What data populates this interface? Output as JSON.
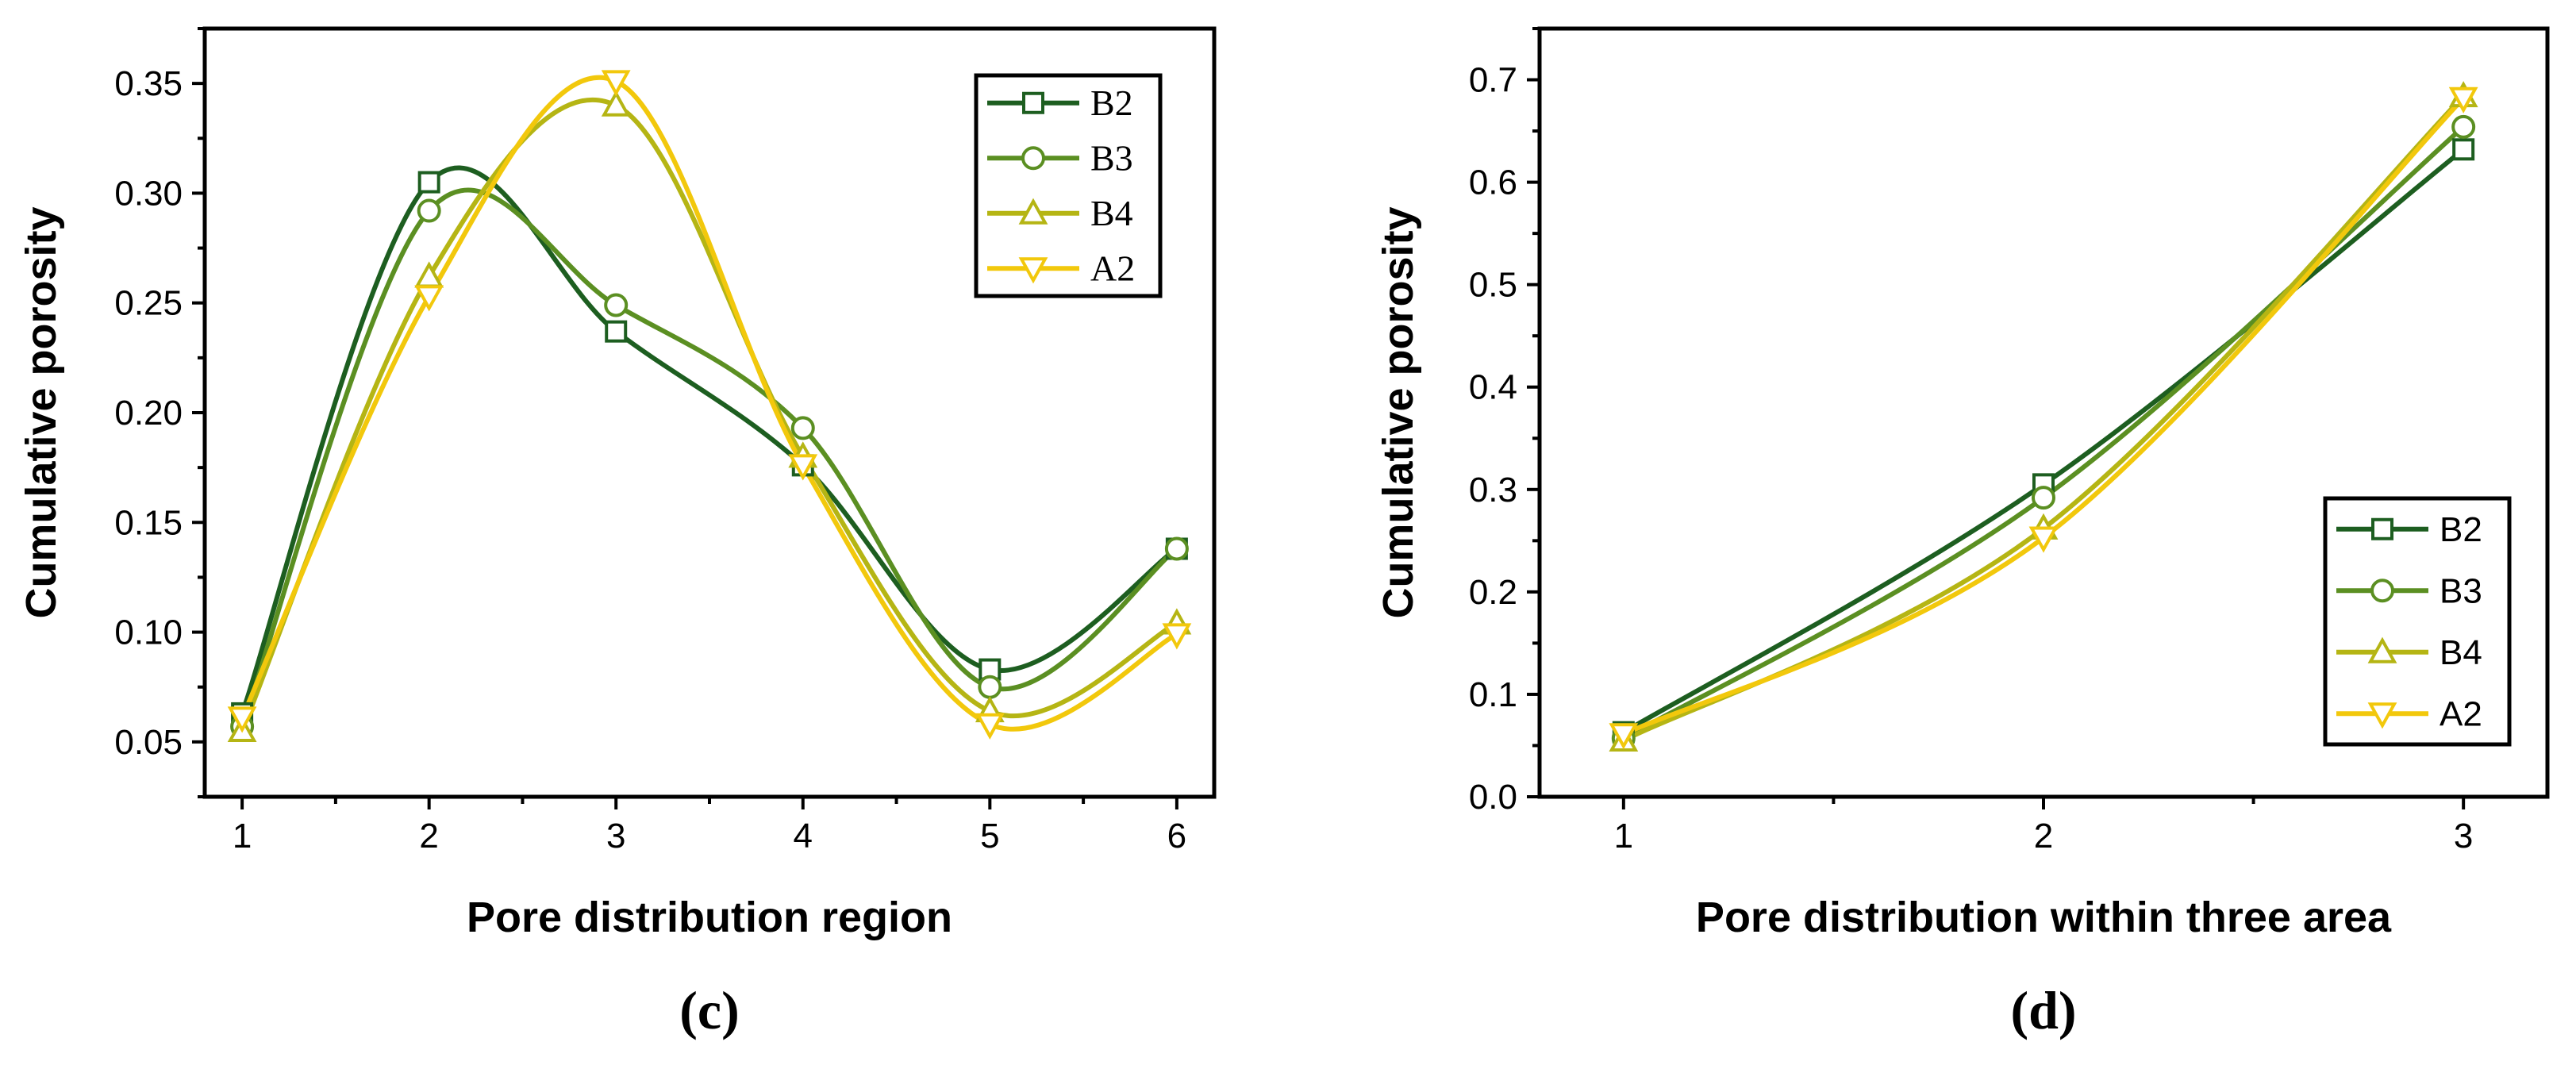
{
  "chart_data": [
    {
      "type": "line",
      "panel_label": "(c)",
      "xlabel": "Pore distribution region",
      "ylabel": "Cumulative porosity",
      "xlim": [
        0.8,
        6.2
      ],
      "ylim": [
        0.025,
        0.375
      ],
      "x_ticks": [
        1,
        2,
        3,
        4,
        5,
        6
      ],
      "x_tick_labels": [
        "1",
        "2",
        "3",
        "4",
        "5",
        "6"
      ],
      "y_ticks": [
        0.05,
        0.1,
        0.15,
        0.2,
        0.25,
        0.3,
        0.35
      ],
      "y_tick_labels": [
        "0.05",
        "0.10",
        "0.15",
        "0.20",
        "0.25",
        "0.30",
        "0.35"
      ],
      "smooth": true,
      "legend_position": "top-right",
      "legend_font": "serif",
      "x": [
        1,
        2,
        3,
        4,
        5,
        6
      ],
      "series": [
        {
          "name": "B2",
          "color": "#1d5e20",
          "marker": "square",
          "values": [
            0.063,
            0.305,
            0.237,
            0.176,
            0.083,
            0.138
          ]
        },
        {
          "name": "B3",
          "color": "#5b8f22",
          "marker": "circle",
          "values": [
            0.057,
            0.292,
            0.249,
            0.193,
            0.075,
            0.138
          ]
        },
        {
          "name": "B4",
          "color": "#b5b514",
          "marker": "triangle-up",
          "values": [
            0.055,
            0.262,
            0.34,
            0.18,
            0.064,
            0.104
          ]
        },
        {
          "name": "A2",
          "color": "#f2c80c",
          "marker": "triangle-down",
          "values": [
            0.061,
            0.253,
            0.351,
            0.176,
            0.058,
            0.099
          ]
        }
      ]
    },
    {
      "type": "line",
      "panel_label": "(d)",
      "xlabel": "Pore distribution within three area",
      "ylabel": "Cumulative porosity",
      "xlim": [
        0.8,
        3.2
      ],
      "ylim": [
        0.0,
        0.75
      ],
      "x_ticks": [
        1,
        2,
        3
      ],
      "x_tick_labels": [
        "1",
        "2",
        "3"
      ],
      "y_ticks": [
        0.0,
        0.1,
        0.2,
        0.3,
        0.4,
        0.5,
        0.6,
        0.7
      ],
      "y_tick_labels": [
        "0.0",
        "0.1",
        "0.2",
        "0.3",
        "0.4",
        "0.5",
        "0.6",
        "0.7"
      ],
      "smooth": true,
      "legend_position": "bottom-right",
      "legend_font": "sans",
      "x": [
        1,
        2,
        3
      ],
      "series": [
        {
          "name": "B2",
          "color": "#1d5e20",
          "marker": "square",
          "values": [
            0.063,
            0.305,
            0.632
          ]
        },
        {
          "name": "B3",
          "color": "#5b8f22",
          "marker": "circle",
          "values": [
            0.057,
            0.292,
            0.654
          ]
        },
        {
          "name": "B4",
          "color": "#b5b514",
          "marker": "triangle-up",
          "values": [
            0.055,
            0.262,
            0.684
          ]
        },
        {
          "name": "A2",
          "color": "#f2c80c",
          "marker": "triangle-down",
          "values": [
            0.061,
            0.253,
            0.682
          ]
        }
      ]
    }
  ]
}
